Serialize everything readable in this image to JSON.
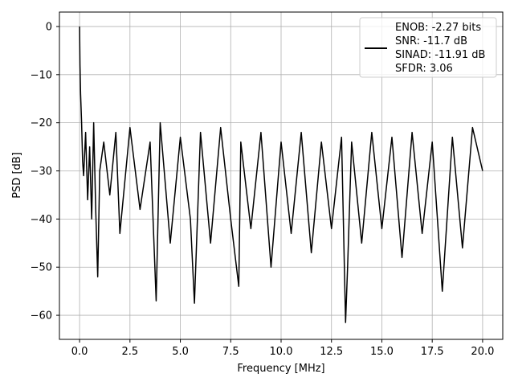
{
  "chart_data": {
    "type": "line",
    "xlabel": "Frequency [MHz]",
    "ylabel": "PSD [dB]",
    "xlim": [
      -1.0,
      21.0
    ],
    "ylim": [
      -65,
      3
    ],
    "x_ticks": [
      0.0,
      2.5,
      5.0,
      7.5,
      10.0,
      12.5,
      15.0,
      17.5,
      20.0
    ],
    "x_tick_labels": [
      "0.0",
      "2.5",
      "5.0",
      "7.5",
      "10.0",
      "12.5",
      "15.0",
      "17.5",
      "20.0"
    ],
    "y_ticks": [
      0,
      -10,
      -20,
      -30,
      -40,
      -50,
      -60
    ],
    "y_tick_labels": [
      "0",
      "−10",
      "−20",
      "−30",
      "−40",
      "−50",
      "−60"
    ],
    "grid": true,
    "legend_position": "top-right",
    "legend_lines": [
      "ENOB: -2.27 bits",
      "SNR: -11.7 dB",
      "SINAD: -11.91 dB",
      "SFDR: 3.06"
    ],
    "series_color": "#000000",
    "series": [
      {
        "x": [
          0.0,
          0.02,
          0.05,
          0.1,
          0.15,
          0.2,
          0.3,
          0.4,
          0.5,
          0.6,
          0.7,
          0.8,
          0.9,
          1.0,
          1.2,
          1.5,
          1.8,
          2.0,
          2.5,
          3.0,
          3.5,
          3.8,
          4.0,
          4.5,
          5.0,
          5.5,
          5.7,
          6.0,
          6.5,
          7.0,
          7.5,
          7.9,
          8.0,
          8.5,
          9.0,
          9.5,
          10.0,
          10.5,
          11.0,
          11.5,
          12.0,
          12.5,
          13.0,
          13.2,
          13.3,
          13.5,
          14.0,
          14.5,
          15.0,
          15.5,
          16.0,
          16.5,
          17.0,
          17.5,
          18.0,
          18.5,
          19.0,
          19.5,
          20.0
        ],
        "y": [
          0.0,
          -8,
          -14,
          -20,
          -28,
          -31,
          -22,
          -36,
          -25,
          -40,
          -20,
          -38,
          -52,
          -30,
          -24,
          -35,
          -22,
          -43,
          -21,
          -38,
          -24,
          -57,
          -20,
          -45,
          -23,
          -40,
          -57.5,
          -22,
          -45,
          -21,
          -40,
          -54,
          -24,
          -42,
          -22,
          -50,
          -24,
          -43,
          -22,
          -47,
          -24,
          -42,
          -23,
          -61.5,
          -50,
          -24,
          -45,
          -22,
          -42,
          -23,
          -48,
          -22,
          -43,
          -24,
          -55,
          -23,
          -46,
          -21,
          -30
        ]
      }
    ]
  }
}
